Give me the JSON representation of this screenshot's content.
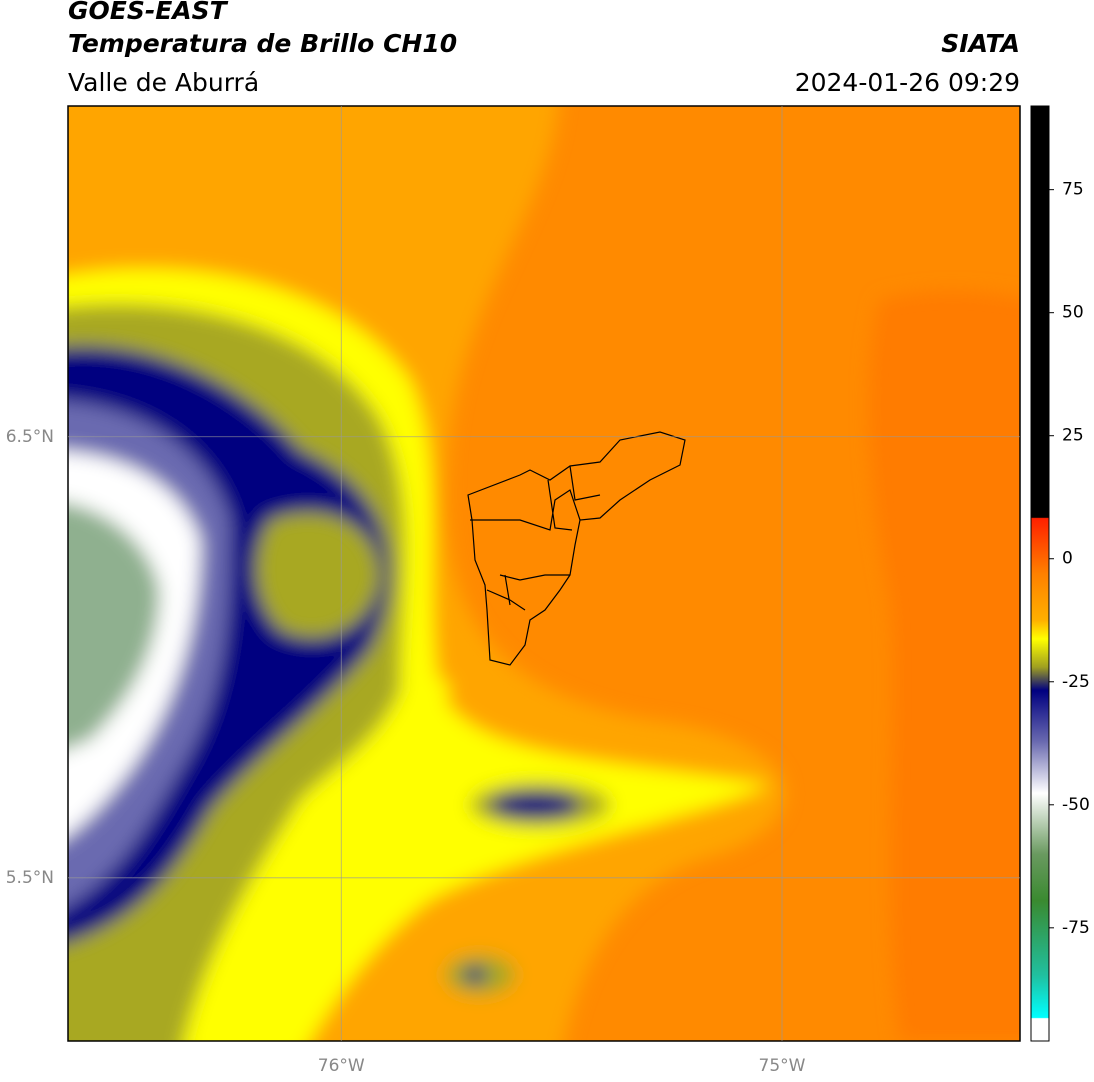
{
  "header": {
    "line1": "GOES-EAST",
    "line2": "Temperatura de Brillo CH10",
    "subtitle": "Valle de Aburrá",
    "source": "SIATA",
    "datetime": "2024-01-26 09:29"
  },
  "map": {
    "xlim": [
      -76.62,
      -74.46
    ],
    "ylim": [
      5.13,
      7.25
    ],
    "xticks": [
      {
        "value": -76,
        "label": "76°W"
      },
      {
        "value": -75,
        "label": "75°W"
      }
    ],
    "yticks": [
      {
        "value": 6.5,
        "label": "6.5°N"
      },
      {
        "value": 5.5,
        "label": "5.5°N"
      }
    ]
  },
  "colorbar": {
    "lim": [
      -98,
      92
    ],
    "ticks": [
      75,
      50,
      25,
      0,
      -25,
      -50,
      -75
    ]
  }
}
